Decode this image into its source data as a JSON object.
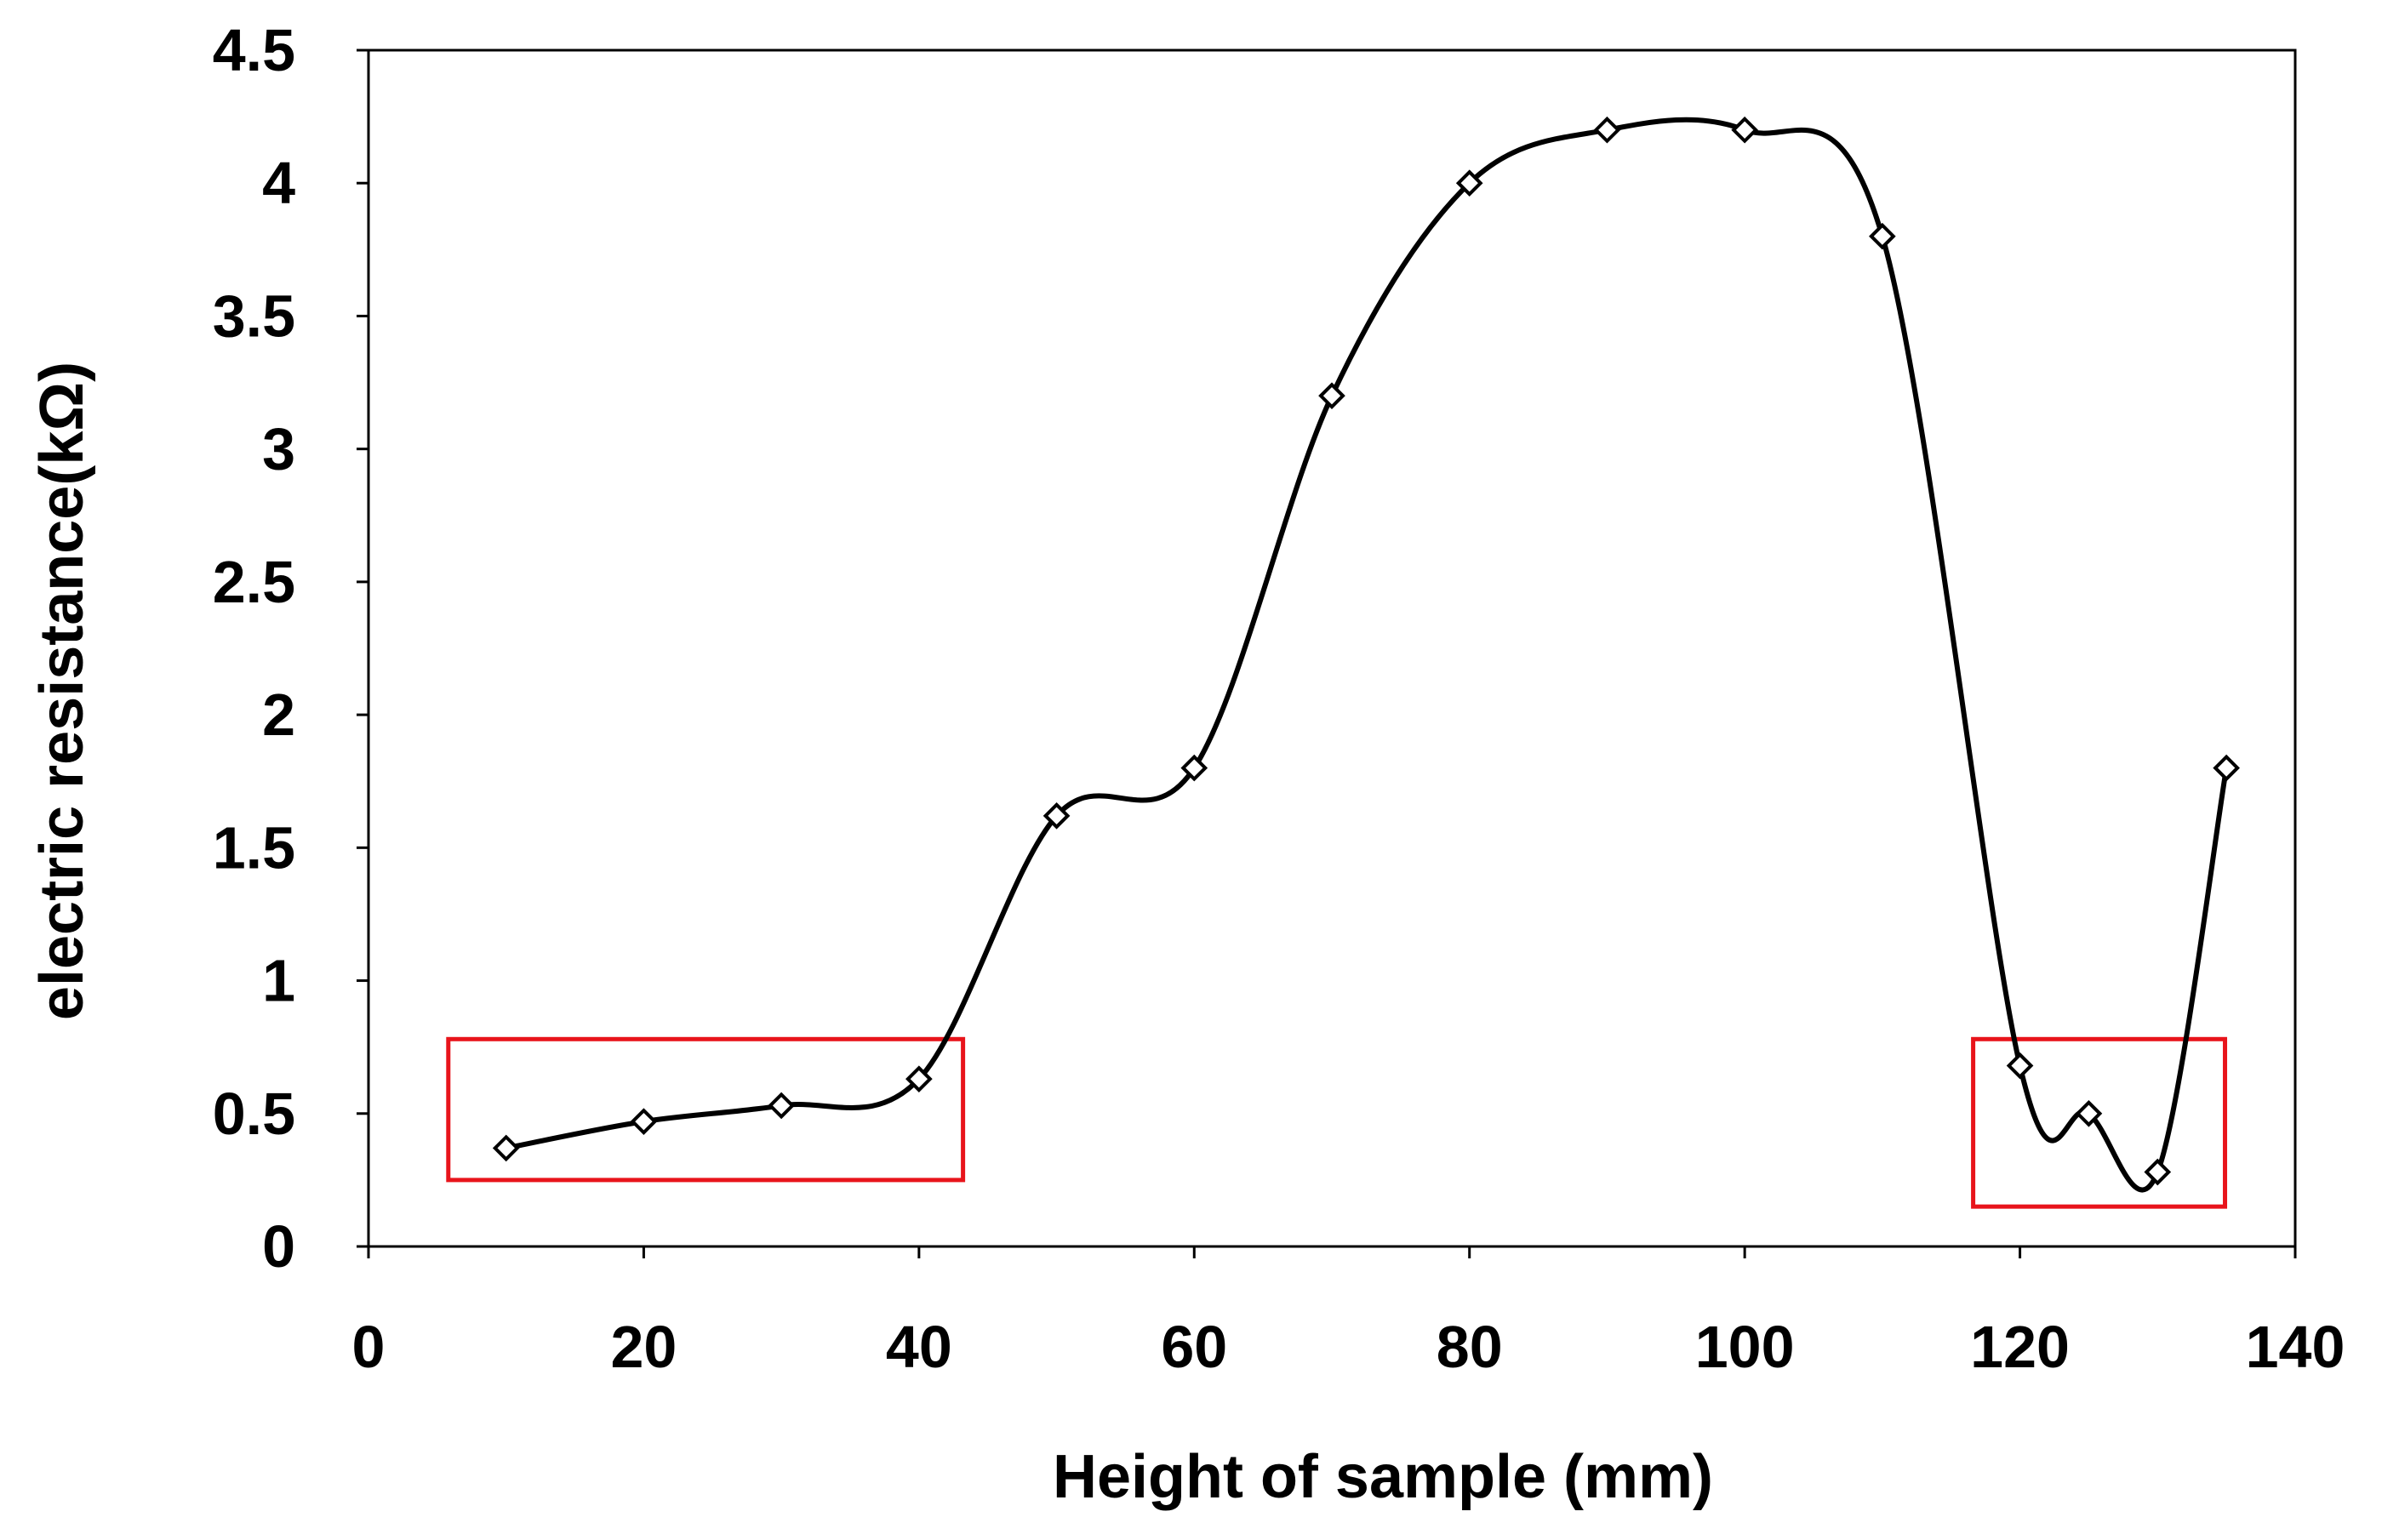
{
  "chart_data": {
    "type": "line",
    "title": "",
    "xlabel": "Height of sample (mm)",
    "ylabel": "electric resistance(kΩ)",
    "xlim": [
      0,
      140
    ],
    "ylim": [
      0,
      4.5
    ],
    "xticks": [
      0,
      20,
      40,
      60,
      80,
      100,
      120,
      140
    ],
    "yticks": [
      0,
      0.5,
      1,
      1.5,
      2,
      2.5,
      3,
      3.5,
      4,
      4.5
    ],
    "xtick_labels": [
      "0",
      "20",
      "40",
      "60",
      "80",
      "100",
      "120",
      "140"
    ],
    "ytick_labels": [
      "0",
      "0.5",
      "1",
      "1.5",
      "2",
      "2.5",
      "3",
      "3.5",
      "4",
      "4.5"
    ],
    "grid": false,
    "legend": "none",
    "series": [
      {
        "name": "electric resistance",
        "marker": "diamond",
        "smooth": true,
        "color": "#000000",
        "x": [
          10,
          20,
          30,
          40,
          50,
          60,
          70,
          80,
          90,
          100,
          110,
          120,
          125,
          130,
          135
        ],
        "values": [
          0.37,
          0.47,
          0.53,
          0.63,
          1.62,
          1.8,
          3.2,
          4.0,
          4.2,
          4.2,
          3.8,
          0.68,
          0.5,
          0.28,
          1.8
        ]
      }
    ],
    "annotations": [
      {
        "type": "highlight-box",
        "color": "#e8141b",
        "x_range": [
          5.8,
          43.2
        ],
        "y_range": [
          0.25,
          0.78
        ]
      },
      {
        "type": "highlight-box",
        "color": "#e8141b",
        "x_range": [
          116.6,
          134.9
        ],
        "y_range": [
          0.15,
          0.78
        ]
      }
    ]
  }
}
